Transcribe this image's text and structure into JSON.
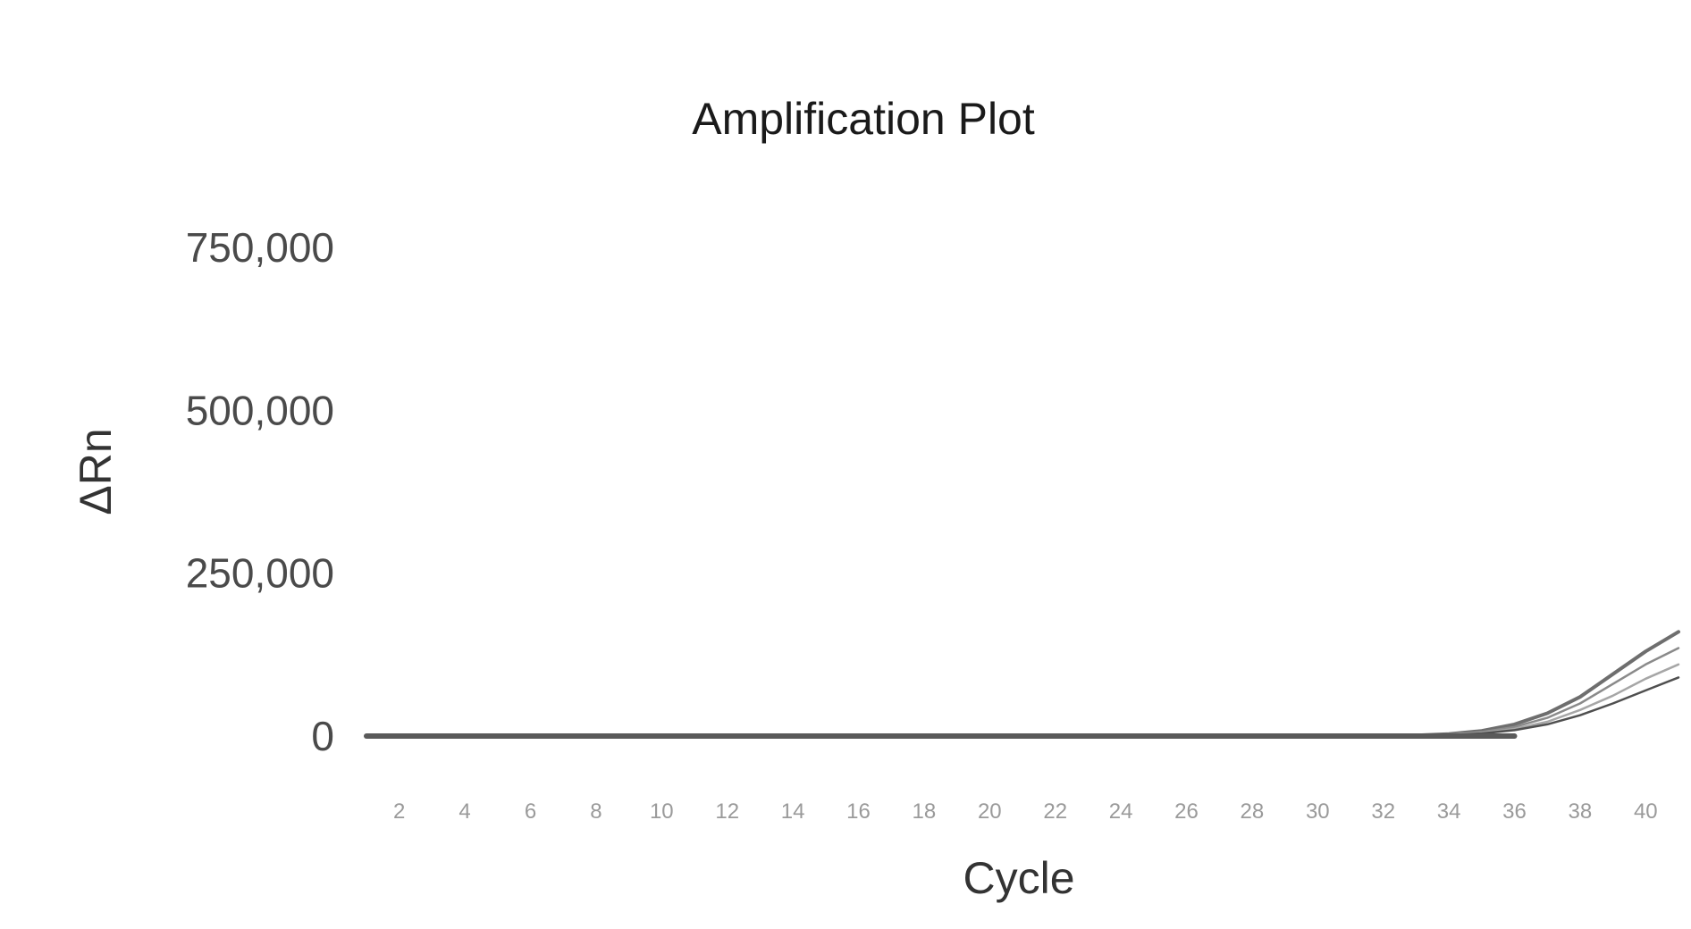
{
  "chart_data": {
    "type": "line",
    "title": "Amplification Plot",
    "xlabel": "Cycle",
    "ylabel": "ΔRn",
    "xlim": [
      1,
      41
    ],
    "ylim": [
      0,
      750000
    ],
    "xticks": [
      2,
      4,
      6,
      8,
      10,
      12,
      14,
      16,
      18,
      20,
      22,
      24,
      26,
      28,
      30,
      32,
      34,
      36,
      38,
      40
    ],
    "xtick_labels": [
      "2",
      "4",
      "6",
      "8",
      "10",
      "12",
      "14",
      "16",
      "18",
      "20",
      "22",
      "24",
      "26",
      "28",
      "30",
      "32",
      "34",
      "36",
      "38",
      "40"
    ],
    "yticks": [
      0,
      250000,
      500000,
      750000
    ],
    "ytick_labels": [
      "0",
      "250,000",
      "500,000",
      "750,000"
    ],
    "grid": false,
    "legend": "none",
    "curve_colors": [
      "#6e6e6e",
      "#8a8a8a",
      "#a6a6a6",
      "#4f4f4f"
    ],
    "x": [
      1,
      2,
      3,
      4,
      5,
      6,
      7,
      8,
      9,
      10,
      11,
      12,
      13,
      14,
      15,
      16,
      17,
      18,
      19,
      20,
      21,
      22,
      23,
      24,
      25,
      26,
      27,
      28,
      29,
      30,
      31,
      32,
      33,
      34,
      35,
      36,
      37,
      38,
      39,
      40,
      41
    ],
    "series": [
      {
        "values": [
          0,
          0,
          0,
          0,
          0,
          0,
          0,
          0,
          0,
          0,
          0,
          0,
          0,
          0,
          0,
          0,
          0,
          0,
          0,
          0,
          0,
          0,
          0,
          0,
          0,
          0,
          0,
          0,
          0,
          0,
          0,
          0,
          1000,
          3000,
          8000,
          18000,
          35000,
          60000,
          95000,
          130000,
          160000
        ]
      },
      {
        "values": [
          0,
          0,
          0,
          0,
          0,
          0,
          0,
          0,
          0,
          0,
          0,
          0,
          0,
          0,
          0,
          0,
          0,
          0,
          0,
          0,
          0,
          0,
          0,
          0,
          0,
          0,
          0,
          0,
          0,
          0,
          0,
          0,
          800,
          2500,
          6000,
          14000,
          28000,
          50000,
          80000,
          110000,
          135000
        ]
      },
      {
        "values": [
          0,
          0,
          0,
          0,
          0,
          0,
          0,
          0,
          0,
          0,
          0,
          0,
          0,
          0,
          0,
          0,
          0,
          0,
          0,
          0,
          0,
          0,
          0,
          0,
          0,
          0,
          0,
          0,
          0,
          0,
          0,
          0,
          600,
          2000,
          5000,
          11000,
          22000,
          40000,
          62000,
          88000,
          110000
        ]
      },
      {
        "values": [
          0,
          0,
          0,
          0,
          0,
          0,
          0,
          0,
          0,
          0,
          0,
          0,
          0,
          0,
          0,
          0,
          0,
          0,
          0,
          0,
          0,
          0,
          0,
          0,
          0,
          0,
          0,
          0,
          0,
          0,
          0,
          0,
          500,
          1500,
          4000,
          9000,
          18000,
          32000,
          50000,
          70000,
          90000
        ]
      }
    ]
  }
}
